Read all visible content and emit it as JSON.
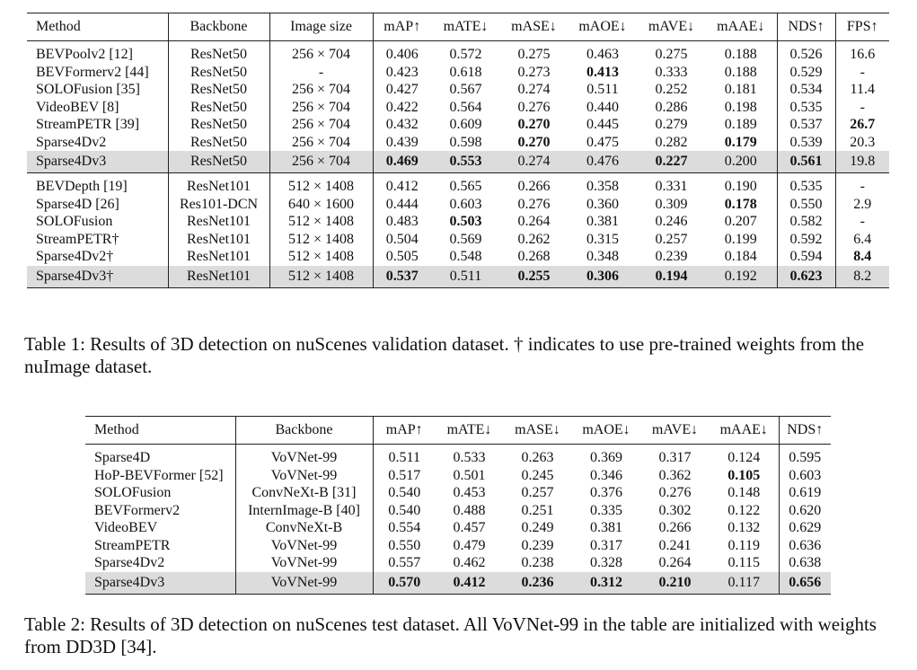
{
  "table1": {
    "header": [
      "Method",
      "Backbone",
      "Image size",
      "mAP↑",
      "mATE↓",
      "mASE↓",
      "mAOE↓",
      "mAVE↓",
      "mAAE↓",
      "NDS↑",
      "FPS↑"
    ],
    "groups": [
      {
        "rows": [
          {
            "cells": [
              "BEVPoolv2 [12]",
              "ResNet50",
              "256 × 704",
              "0.406",
              "0.572",
              "0.275",
              "0.463",
              "0.275",
              "0.188",
              "0.526",
              "16.6"
            ]
          },
          {
            "cells": [
              "BEVFormerv2 [44]",
              "ResNet50",
              "-",
              "0.423",
              "0.618",
              "0.273",
              {
                "text": "0.413",
                "bold": true
              },
              "0.333",
              "0.188",
              "0.529",
              "-"
            ]
          },
          {
            "cells": [
              "SOLOFusion [35]",
              "ResNet50",
              "256 × 704",
              "0.427",
              "0.567",
              "0.274",
              "0.511",
              "0.252",
              "0.181",
              "0.534",
              "11.4"
            ]
          },
          {
            "cells": [
              "VideoBEV [8]",
              "ResNet50",
              "256 × 704",
              "0.422",
              "0.564",
              "0.276",
              "0.440",
              "0.286",
              "0.198",
              "0.535",
              "-"
            ]
          },
          {
            "cells": [
              "StreamPETR [39]",
              "ResNet50",
              "256 × 704",
              "0.432",
              "0.609",
              {
                "text": "0.270",
                "bold": true
              },
              "0.445",
              "0.279",
              "0.189",
              "0.537",
              {
                "text": "26.7",
                "bold": true
              }
            ]
          },
          {
            "cells": [
              "Sparse4Dv2",
              "ResNet50",
              "256 × 704",
              "0.439",
              "0.598",
              {
                "text": "0.270",
                "bold": true
              },
              "0.475",
              "0.282",
              {
                "text": "0.179",
                "bold": true
              },
              "0.539",
              "20.3"
            ]
          },
          {
            "cells": [
              "Sparse4Dv3",
              "ResNet50",
              "256 × 704",
              {
                "text": "0.469",
                "bold": true
              },
              {
                "text": "0.553",
                "bold": true
              },
              "0.274",
              "0.476",
              {
                "text": "0.227",
                "bold": true
              },
              "0.200",
              {
                "text": "0.561",
                "bold": true
              },
              "19.8"
            ],
            "highlight": true
          }
        ]
      },
      {
        "rows": [
          {
            "cells": [
              "BEVDepth [19]",
              "ResNet101",
              "512 × 1408",
              "0.412",
              "0.565",
              "0.266",
              "0.358",
              "0.331",
              "0.190",
              "0.535",
              "-"
            ]
          },
          {
            "cells": [
              "Sparse4D [26]",
              "Res101-DCN",
              "640 × 1600",
              "0.444",
              "0.603",
              "0.276",
              "0.360",
              "0.309",
              {
                "text": "0.178",
                "bold": true
              },
              "0.550",
              "2.9"
            ]
          },
          {
            "cells": [
              "SOLOFusion",
              "ResNet101",
              "512 × 1408",
              "0.483",
              {
                "text": "0.503",
                "bold": true
              },
              "0.264",
              "0.381",
              "0.246",
              "0.207",
              "0.582",
              "-"
            ]
          },
          {
            "cells": [
              "StreamPETR†",
              "ResNet101",
              "512 × 1408",
              "0.504",
              "0.569",
              "0.262",
              "0.315",
              "0.257",
              "0.199",
              "0.592",
              "6.4"
            ]
          },
          {
            "cells": [
              "Sparse4Dv2†",
              "ResNet101",
              "512 × 1408",
              "0.505",
              "0.548",
              "0.268",
              "0.348",
              "0.239",
              "0.184",
              "0.594",
              {
                "text": "8.4",
                "bold": true
              }
            ]
          },
          {
            "cells": [
              "Sparse4Dv3†",
              "ResNet101",
              "512 × 1408",
              {
                "text": "0.537",
                "bold": true
              },
              "0.511",
              {
                "text": "0.255",
                "bold": true
              },
              {
                "text": "0.306",
                "bold": true
              },
              {
                "text": "0.194",
                "bold": true
              },
              "0.192",
              {
                "text": "0.623",
                "bold": true
              },
              "8.2"
            ],
            "highlight": true
          }
        ]
      }
    ],
    "caption": "Table 1: Results of 3D detection on nuScenes validation dataset. † indicates to use pre-trained weights from the nuImage dataset."
  },
  "table2": {
    "header": [
      "Method",
      "Backbone",
      "mAP↑",
      "mATE↓",
      "mASE↓",
      "mAOE↓",
      "mAVE↓",
      "mAAE↓",
      "NDS↑"
    ],
    "groups": [
      {
        "rows": [
          {
            "cells": [
              "Sparse4D",
              "VoVNet-99",
              "0.511",
              "0.533",
              "0.263",
              "0.369",
              "0.317",
              "0.124",
              "0.595"
            ]
          },
          {
            "cells": [
              "HoP-BEVFormer [52]",
              "VoVNet-99",
              "0.517",
              "0.501",
              "0.245",
              "0.346",
              "0.362",
              {
                "text": "0.105",
                "bold": true
              },
              "0.603"
            ]
          },
          {
            "cells": [
              "SOLOFusion",
              "ConvNeXt-B [31]",
              "0.540",
              "0.453",
              "0.257",
              "0.376",
              "0.276",
              "0.148",
              "0.619"
            ]
          },
          {
            "cells": [
              "BEVFormerv2",
              "InternImage-B [40]",
              "0.540",
              "0.488",
              "0.251",
              "0.335",
              "0.302",
              "0.122",
              "0.620"
            ]
          },
          {
            "cells": [
              "VideoBEV",
              "ConvNeXt-B",
              "0.554",
              "0.457",
              "0.249",
              "0.381",
              "0.266",
              "0.132",
              "0.629"
            ]
          },
          {
            "cells": [
              "StreamPETR",
              "VoVNet-99",
              "0.550",
              "0.479",
              "0.239",
              "0.317",
              "0.241",
              "0.119",
              "0.636"
            ]
          },
          {
            "cells": [
              "Sparse4Dv2",
              "VoVNet-99",
              "0.557",
              "0.462",
              "0.238",
              "0.328",
              "0.264",
              "0.115",
              "0.638"
            ]
          },
          {
            "cells": [
              "Sparse4Dv3",
              "VoVNet-99",
              {
                "text": "0.570",
                "bold": true
              },
              {
                "text": "0.412",
                "bold": true
              },
              {
                "text": "0.236",
                "bold": true
              },
              {
                "text": "0.312",
                "bold": true
              },
              {
                "text": "0.210",
                "bold": true
              },
              "0.117",
              {
                "text": "0.656",
                "bold": true
              }
            ],
            "highlight": true
          }
        ]
      }
    ],
    "caption": "Table 2: Results of 3D detection on nuScenes test dataset. All VoVNet-99 in the table are initialized with weights from DD3D [34]."
  }
}
